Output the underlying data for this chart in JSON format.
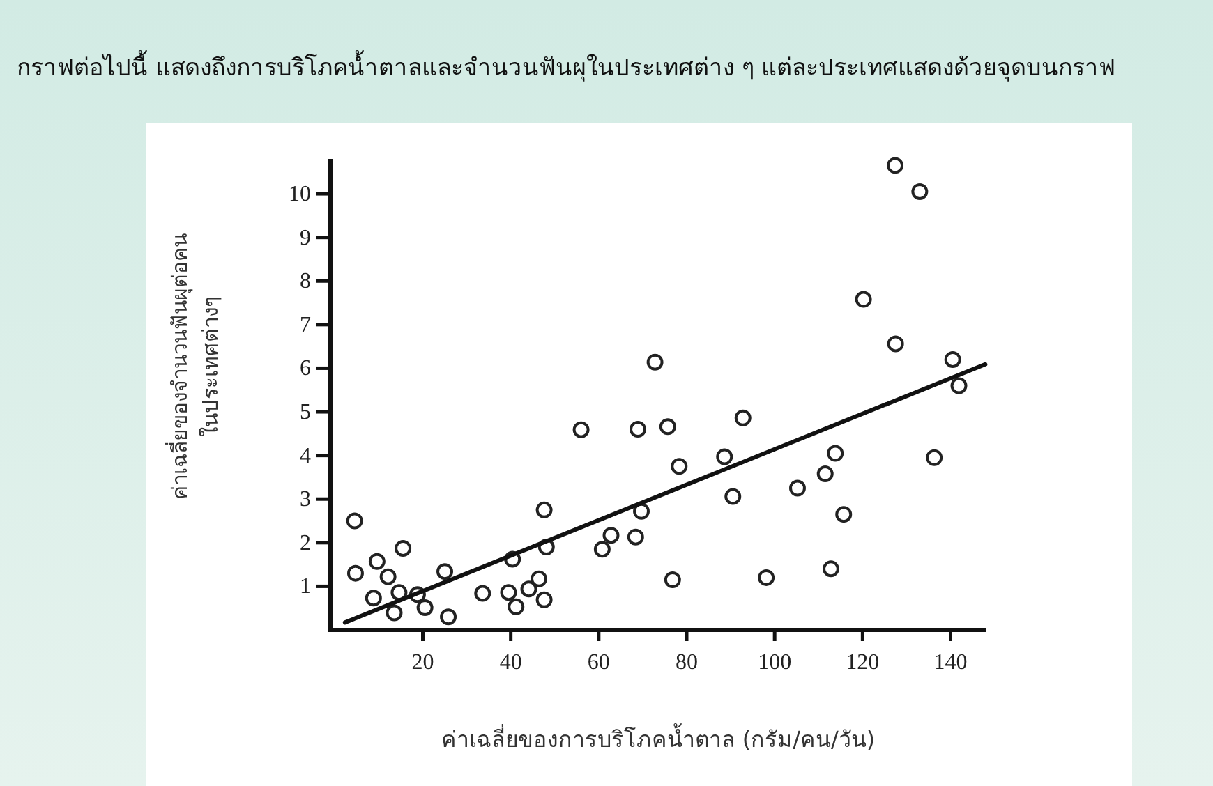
{
  "chart_data": {
    "type": "scatter",
    "title": "กราฟต่อไปนี้ แสดงถึงการบริโภคน้ำตาลและจำนวนฟันผุในประเทศต่าง ๆ แต่ละประเทศแสดงด้วยจุดบนกราฟ",
    "xlabel": "ค่าเฉลี่ยของการบริโภคน้ำตาล (กรัม/คน/วัน)",
    "ylabel": "ค่าเฉลี่ยของจำนวนฟันผุต่อคน\nในประเทศต่างๆ",
    "xlim": [
      -1,
      148
    ],
    "ylim": [
      0,
      10.8
    ],
    "xticks": [
      20,
      40,
      60,
      80,
      100,
      120,
      140
    ],
    "yticks": [
      1,
      2,
      3,
      4,
      5,
      6,
      7,
      8,
      9,
      10
    ],
    "grid": false,
    "series": [
      {
        "marker": "circle",
        "color": "#222222",
        "x": [
          4.5,
          4.7,
          8.8,
          9.6,
          12.1,
          13.5,
          14.6,
          15.5,
          18.8,
          20.5,
          25,
          25.8,
          33.6,
          39.5,
          40.4,
          41.2,
          44.1,
          46.4,
          47.6,
          47.6,
          48.1,
          56,
          60.8,
          62.8,
          68.4,
          68.9,
          69.7,
          72.8,
          75.7,
          76.8,
          78.3,
          88.6,
          90.5,
          92.8,
          98.1,
          105.2,
          111.5,
          112.8,
          113.8,
          115.7,
          120.2,
          127.4,
          127.5,
          133,
          136.3,
          140.5,
          141.9
        ],
        "values": [
          2.5,
          1.3,
          0.73,
          1.57,
          1.22,
          0.39,
          0.86,
          1.87,
          0.81,
          0.51,
          1.34,
          0.3,
          0.84,
          0.86,
          1.62,
          0.53,
          0.94,
          1.17,
          2.75,
          0.69,
          1.9,
          4.59,
          1.85,
          2.17,
          2.13,
          4.6,
          2.72,
          6.14,
          4.66,
          1.15,
          3.75,
          3.97,
          3.06,
          4.86,
          1.2,
          3.25,
          3.58,
          1.4,
          4.05,
          2.65,
          7.58,
          10.65,
          6.56,
          10.05,
          3.95,
          6.2,
          5.6
        ]
      },
      {
        "type": "line",
        "marker": "none",
        "line_style": "solid",
        "color": "#111111",
        "x": [
          2.3,
          147.9
        ],
        "values": [
          0.17,
          6.09
        ]
      }
    ]
  }
}
